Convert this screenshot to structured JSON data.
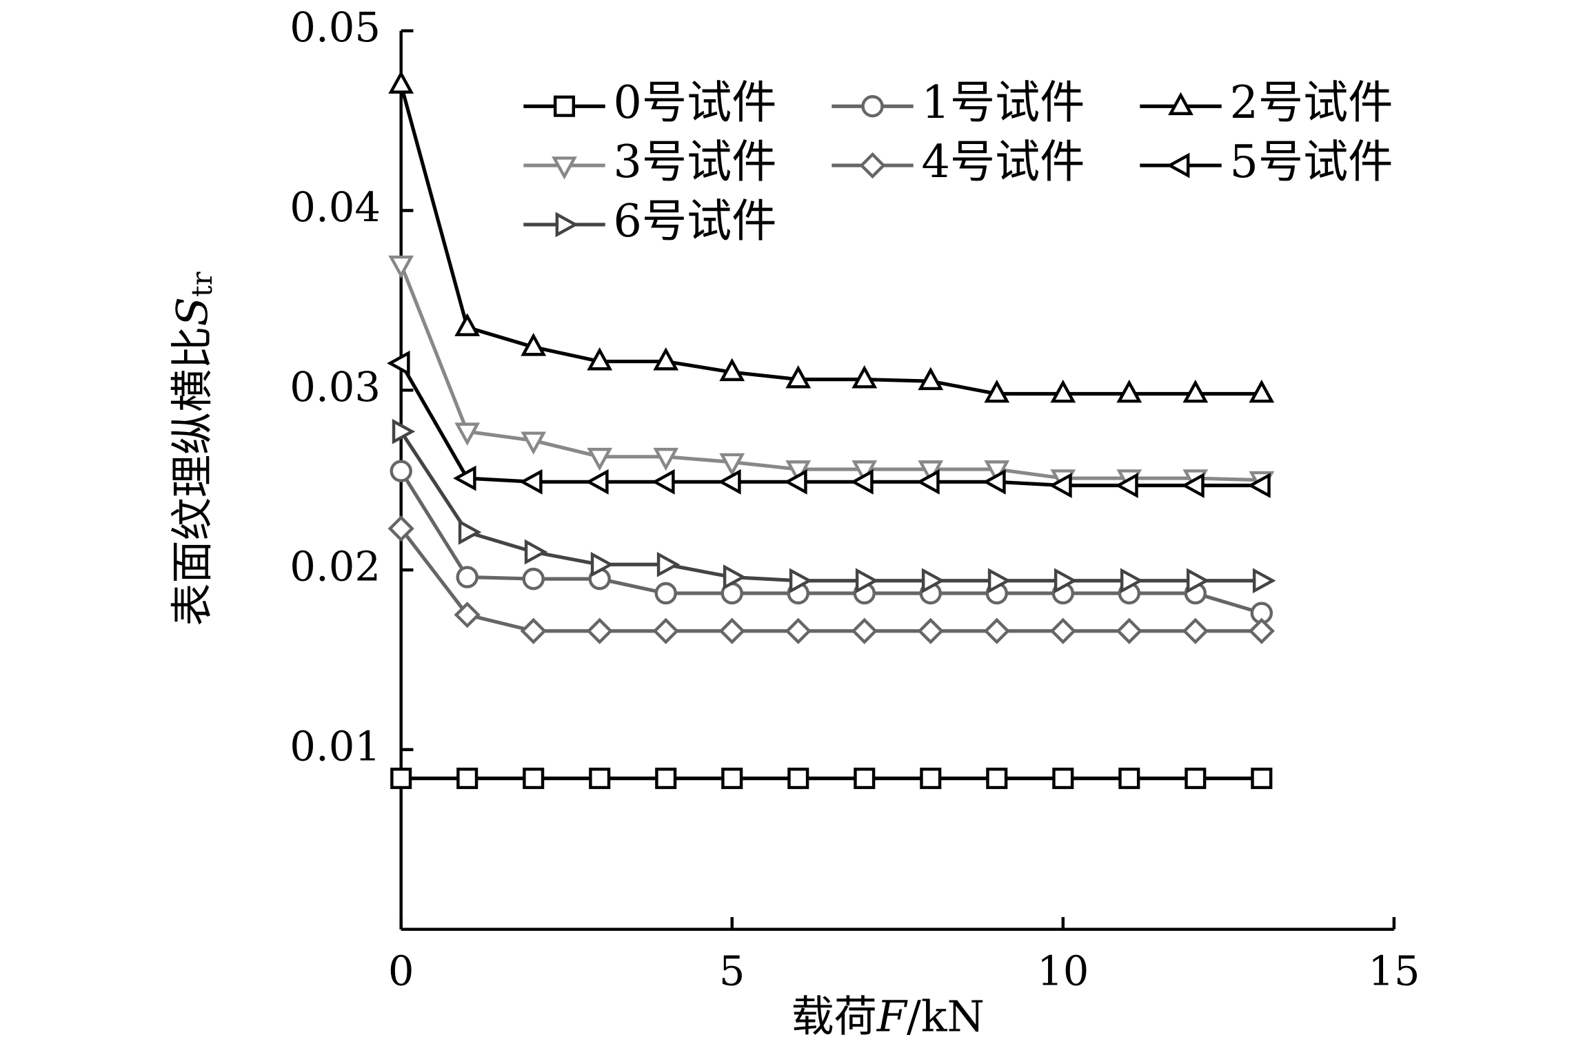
{
  "chart_data": {
    "type": "line",
    "xlabel": [
      "载荷",
      "F",
      "/kN"
    ],
    "ylabel": [
      "表面纹理纵横比",
      "S",
      "tr"
    ],
    "x": [
      0,
      1,
      2,
      3,
      4,
      5,
      6,
      7,
      8,
      9,
      10,
      11,
      12,
      13
    ],
    "xlim": [
      0,
      15
    ],
    "xticks": [
      0,
      5,
      10,
      15
    ],
    "ylim": [
      0,
      0.05
    ],
    "yticks": [
      0.01,
      0.02,
      0.03,
      0.04,
      0.05
    ],
    "legend_position": "upper right",
    "series": [
      {
        "name": "0号试件",
        "color": "#000000",
        "marker": "square",
        "values": [
          0.0084,
          0.0084,
          0.0084,
          0.0084,
          0.0084,
          0.0084,
          0.0084,
          0.0084,
          0.0084,
          0.0084,
          0.0084,
          0.0084,
          0.0084,
          0.0084
        ]
      },
      {
        "name": "1号试件",
        "color": "#666666",
        "marker": "circle",
        "values": [
          0.0255,
          0.0196,
          0.0195,
          0.0195,
          0.0187,
          0.0187,
          0.0187,
          0.0187,
          0.0187,
          0.0187,
          0.0187,
          0.0187,
          0.0187,
          0.0176
        ]
      },
      {
        "name": "2号试件",
        "color": "#000000",
        "marker": "triangle-up",
        "values": [
          0.047,
          0.0335,
          0.0324,
          0.0316,
          0.0316,
          0.031,
          0.0306,
          0.0306,
          0.0305,
          0.0298,
          0.0298,
          0.0298,
          0.0298,
          0.0298
        ]
      },
      {
        "name": "3号试件",
        "color": "#888888",
        "marker": "triangle-down",
        "values": [
          0.037,
          0.0277,
          0.0272,
          0.0263,
          0.0263,
          0.026,
          0.0256,
          0.0256,
          0.0256,
          0.0256,
          0.0251,
          0.0251,
          0.0251,
          0.025
        ]
      },
      {
        "name": "4号试件",
        "color": "#666666",
        "marker": "diamond",
        "values": [
          0.0223,
          0.0175,
          0.0166,
          0.0166,
          0.0166,
          0.0166,
          0.0166,
          0.0166,
          0.0166,
          0.0166,
          0.0166,
          0.0166,
          0.0166,
          0.0166
        ]
      },
      {
        "name": "5号试件",
        "color": "#000000",
        "marker": "triangle-left",
        "values": [
          0.0315,
          0.0251,
          0.0249,
          0.0249,
          0.0249,
          0.0249,
          0.0249,
          0.0249,
          0.0249,
          0.0249,
          0.0247,
          0.0247,
          0.0247,
          0.0247
        ]
      },
      {
        "name": "6号试件",
        "color": "#444444",
        "marker": "triangle-right",
        "values": [
          0.0277,
          0.0221,
          0.021,
          0.0203,
          0.0203,
          0.0196,
          0.0194,
          0.0194,
          0.0194,
          0.0194,
          0.0194,
          0.0194,
          0.0194,
          0.0194
        ]
      }
    ]
  }
}
